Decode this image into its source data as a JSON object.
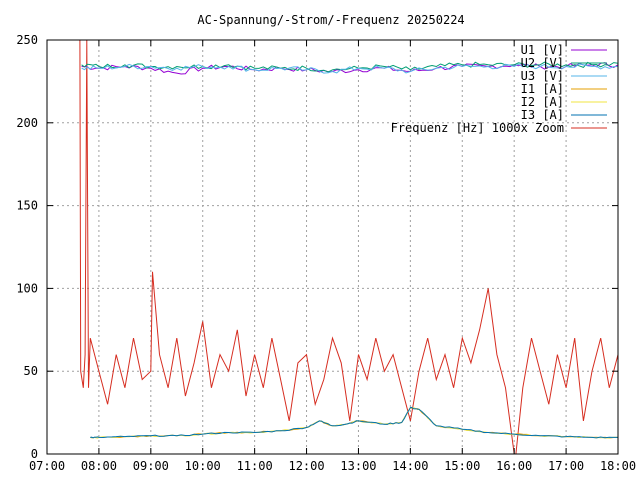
{
  "chart_data": {
    "type": "line",
    "title": "AC-Spannung/-Strom/-Frequenz 20250224",
    "xlabel": "",
    "ylabel": "",
    "xlim": [
      "07:00",
      "18:00"
    ],
    "ylim": [
      0,
      250
    ],
    "x_ticks": [
      "07:00",
      "08:00",
      "09:00",
      "10:00",
      "11:00",
      "12:00",
      "13:00",
      "14:00",
      "15:00",
      "16:00",
      "17:00",
      "18:00"
    ],
    "y_ticks": [
      "0",
      "50",
      "100",
      "150",
      "200",
      "250"
    ],
    "grid": true,
    "legend": "top-right",
    "series": [
      {
        "name": "U1 [V]",
        "color": "#9400d3",
        "x": [
          "07:40",
          "08:00",
          "08:30",
          "09:00",
          "09:30",
          "10:00",
          "10:30",
          "11:00",
          "11:30",
          "12:00",
          "12:30",
          "13:00",
          "13:30",
          "14:00",
          "14:30",
          "15:00",
          "15:30",
          "16:00",
          "16:30",
          "17:00",
          "17:30",
          "18:00"
        ],
        "y": [
          234,
          233,
          234,
          233,
          230,
          233,
          234,
          232,
          233,
          232,
          231,
          232,
          233,
          231,
          233,
          234,
          234,
          235,
          234,
          234,
          235,
          235
        ]
      },
      {
        "name": "U2 [V]",
        "color": "#009e73",
        "x": [
          "07:40",
          "08:00",
          "08:30",
          "09:00",
          "09:30",
          "10:00",
          "10:30",
          "11:00",
          "11:30",
          "12:00",
          "12:30",
          "13:00",
          "13:30",
          "14:00",
          "14:30",
          "15:00",
          "15:30",
          "16:00",
          "16:30",
          "17:00",
          "17:30",
          "18:00"
        ],
        "y": [
          235,
          234,
          235,
          234,
          234,
          234,
          235,
          233,
          233,
          233,
          232,
          233,
          234,
          232,
          234,
          235,
          235,
          235,
          235,
          235,
          235,
          236
        ]
      },
      {
        "name": "U3 [V]",
        "color": "#56b4e9",
        "x": [
          "07:40",
          "08:00",
          "08:30",
          "09:00",
          "09:30",
          "10:00",
          "10:30",
          "11:00",
          "11:30",
          "12:00",
          "12:30",
          "13:00",
          "13:30",
          "14:00",
          "14:30",
          "15:00",
          "15:30",
          "16:00",
          "16:30",
          "17:00",
          "17:30",
          "18:00"
        ],
        "y": [
          233,
          233,
          234,
          234,
          233,
          234,
          234,
          232,
          233,
          232,
          231,
          233,
          233,
          231,
          233,
          234,
          234,
          234,
          234,
          234,
          234,
          234
        ]
      },
      {
        "name": "I1 [A]",
        "color": "#e69f00",
        "x": [
          "07:50",
          "08:00",
          "08:30",
          "09:00",
          "09:30",
          "10:00",
          "10:30",
          "11:00",
          "11:30",
          "12:00",
          "12:15",
          "12:30",
          "12:45",
          "13:00",
          "13:30",
          "13:50",
          "14:00",
          "14:10",
          "14:30",
          "15:00",
          "15:30",
          "16:00",
          "16:30",
          "17:00",
          "17:30",
          "18:00"
        ],
        "y": [
          10,
          10,
          10.5,
          11,
          11,
          12,
          13,
          13,
          14,
          16,
          20,
          17,
          18,
          20,
          18,
          19,
          28,
          27,
          17,
          15,
          13,
          12,
          11,
          10.5,
          10,
          10
        ]
      },
      {
        "name": "I2 [A]",
        "color": "#f0e442",
        "x": [
          "07:50",
          "08:00",
          "08:30",
          "09:00",
          "09:30",
          "10:00",
          "10:30",
          "11:00",
          "11:30",
          "12:00",
          "12:15",
          "12:30",
          "12:45",
          "13:00",
          "13:30",
          "13:50",
          "14:00",
          "14:10",
          "14:30",
          "15:00",
          "15:30",
          "16:00",
          "16:30",
          "17:00",
          "17:30",
          "18:00"
        ],
        "y": [
          10,
          10,
          10.5,
          11,
          11,
          12,
          13,
          13,
          14,
          16,
          20,
          17,
          18,
          20,
          18,
          19,
          28,
          27,
          17,
          15,
          13,
          12,
          11,
          10.5,
          10,
          10
        ]
      },
      {
        "name": "I3 [A]",
        "color": "#0072b2",
        "x": [
          "07:50",
          "08:00",
          "08:30",
          "09:00",
          "09:30",
          "10:00",
          "10:30",
          "11:00",
          "11:30",
          "12:00",
          "12:15",
          "12:30",
          "12:45",
          "13:00",
          "13:30",
          "13:50",
          "14:00",
          "14:10",
          "14:30",
          "15:00",
          "15:30",
          "16:00",
          "16:30",
          "17:00",
          "17:30",
          "18:00"
        ],
        "y": [
          10,
          10,
          10.5,
          11,
          11,
          12,
          13,
          13,
          14,
          16,
          20,
          17,
          18,
          20,
          18,
          19,
          28,
          27,
          17,
          15,
          13,
          12,
          11,
          10.5,
          10,
          10
        ]
      },
      {
        "name": "Frequenz [Hz] 1000x Zoom",
        "color": "#d62d20",
        "x": [
          "07:38",
          "07:39",
          "07:42",
          "07:44",
          "07:46",
          "07:48",
          "07:50",
          "08:00",
          "08:10",
          "08:20",
          "08:30",
          "08:40",
          "08:50",
          "09:00",
          "09:02",
          "09:10",
          "09:20",
          "09:30",
          "09:40",
          "09:50",
          "10:00",
          "10:10",
          "10:20",
          "10:30",
          "10:40",
          "10:50",
          "11:00",
          "11:10",
          "11:20",
          "11:30",
          "11:40",
          "11:50",
          "12:00",
          "12:10",
          "12:20",
          "12:30",
          "12:40",
          "12:50",
          "13:00",
          "13:10",
          "13:20",
          "13:30",
          "13:40",
          "13:50",
          "14:00",
          "14:10",
          "14:20",
          "14:30",
          "14:40",
          "14:50",
          "15:00",
          "15:10",
          "15:20",
          "15:30",
          "15:40",
          "15:50",
          "16:00",
          "16:02",
          "16:10",
          "16:20",
          "16:30",
          "16:40",
          "16:50",
          "17:00",
          "17:10",
          "17:20",
          "17:30",
          "17:40",
          "17:50",
          "18:00"
        ],
        "y": [
          250,
          50,
          40,
          60,
          250,
          40,
          70,
          50,
          30,
          60,
          40,
          70,
          45,
          50,
          110,
          60,
          40,
          70,
          35,
          55,
          80,
          40,
          60,
          50,
          75,
          35,
          60,
          40,
          70,
          45,
          20,
          55,
          60,
          30,
          45,
          70,
          55,
          20,
          60,
          45,
          70,
          50,
          60,
          40,
          20,
          50,
          70,
          45,
          60,
          40,
          70,
          55,
          75,
          100,
          60,
          40,
          0,
          0,
          40,
          70,
          50,
          30,
          60,
          40,
          70,
          20,
          50,
          70,
          40,
          60
        ]
      }
    ]
  }
}
